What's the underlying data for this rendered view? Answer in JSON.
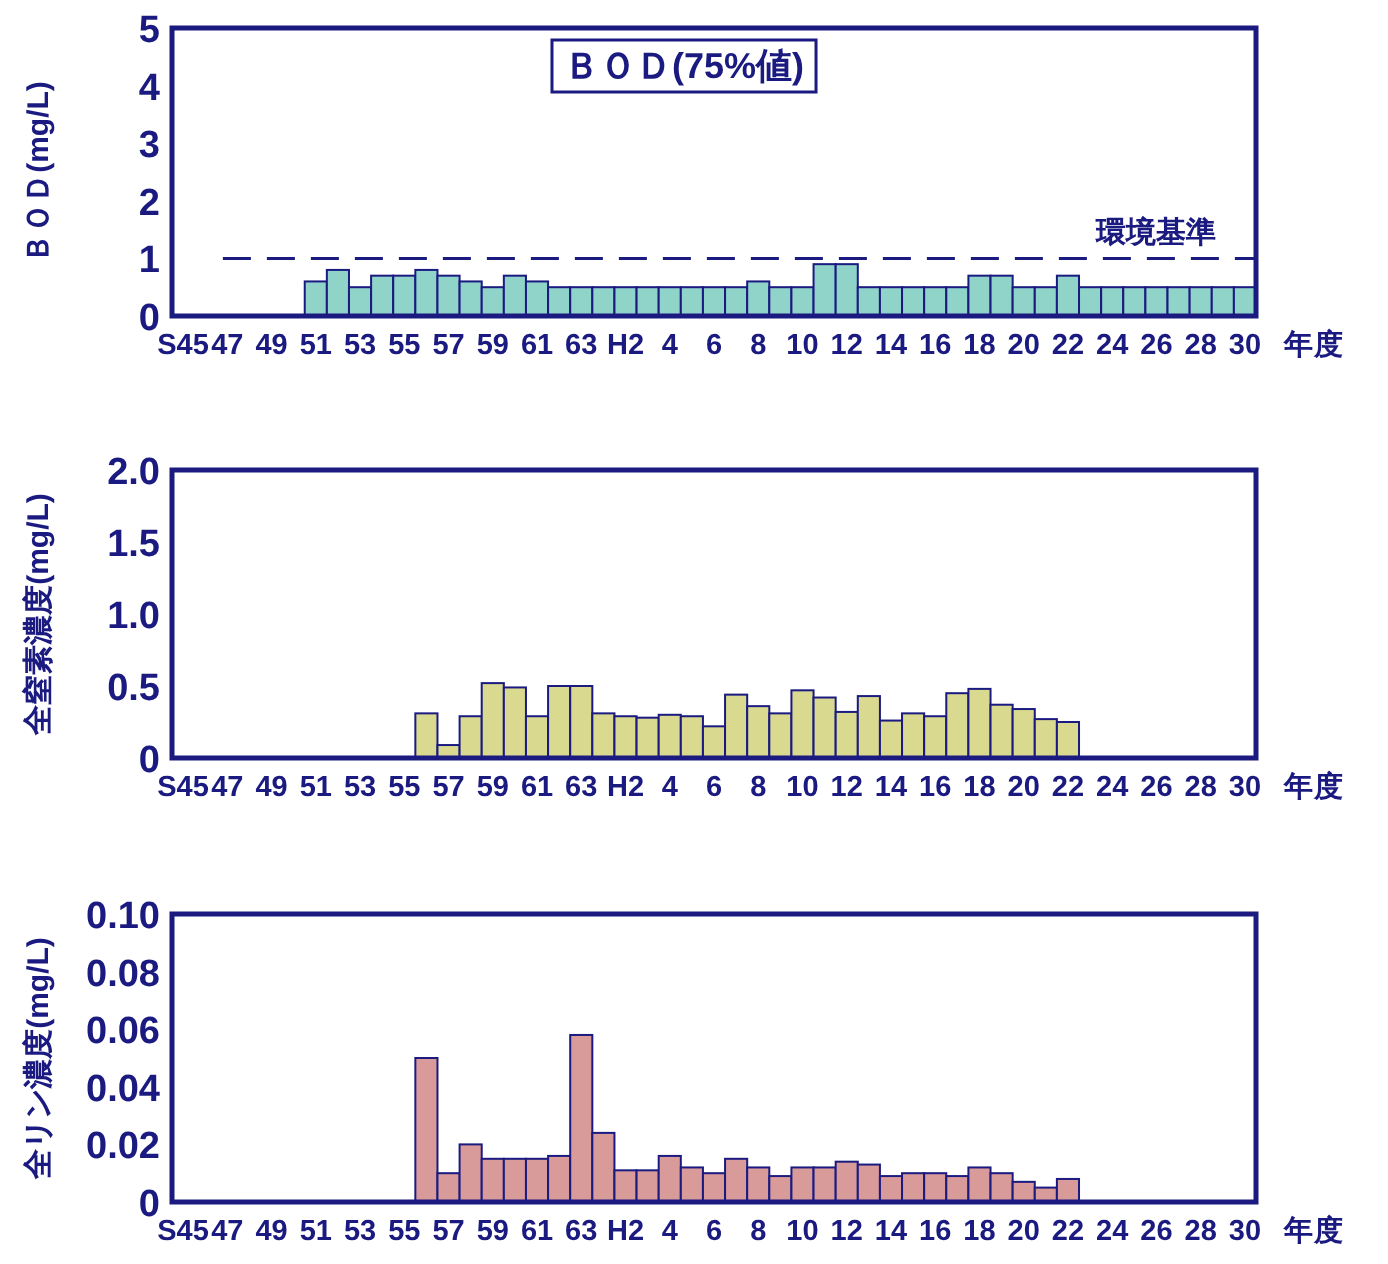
{
  "chart_data": [
    {
      "type": "bar",
      "title": "ＢＯＤ(75%値)",
      "ylabel": "ＢＯＤ(mg/L)",
      "xlabel": "年度",
      "categories": [
        "S45",
        null,
        "47",
        null,
        "49",
        null,
        "51",
        null,
        "53",
        null,
        "55",
        null,
        "57",
        null,
        "59",
        null,
        "61",
        null,
        "63",
        null,
        "H2",
        null,
        "4",
        null,
        "6",
        null,
        "8",
        null,
        "10",
        null,
        "12",
        null,
        "14",
        null,
        "16",
        null,
        "18",
        null,
        "20",
        null,
        "22",
        null,
        "24",
        null,
        "26",
        null,
        "28",
        null,
        "30"
      ],
      "values": [
        null,
        null,
        null,
        null,
        null,
        null,
        0.6,
        0.8,
        0.5,
        0.7,
        0.7,
        0.8,
        0.7,
        0.6,
        0.5,
        0.7,
        0.6,
        0.5,
        0.5,
        0.5,
        0.5,
        0.5,
        0.5,
        0.5,
        0.5,
        0.5,
        0.6,
        0.5,
        0.5,
        0.9,
        0.9,
        0.5,
        0.5,
        0.5,
        0.5,
        0.5,
        0.7,
        0.7,
        0.5,
        0.5,
        0.7,
        0.5,
        0.5,
        0.5,
        0.5,
        0.5,
        0.5,
        0.5,
        0.5
      ],
      "color": "#8fd3c9",
      "ylim": [
        0,
        5
      ],
      "yticks": [
        0,
        1,
        2,
        3,
        4,
        5
      ],
      "ref_lines": [
        {
          "axis": "y",
          "value": 1,
          "label": "環境基準",
          "line_style": "dashed"
        }
      ]
    },
    {
      "type": "bar",
      "ylabel": "全窒素濃度(mg/L)",
      "xlabel": "年度",
      "categories": [
        "S45",
        null,
        "47",
        null,
        "49",
        null,
        "51",
        null,
        "53",
        null,
        "55",
        null,
        "57",
        null,
        "59",
        null,
        "61",
        null,
        "63",
        null,
        "H2",
        null,
        "4",
        null,
        "6",
        null,
        "8",
        null,
        "10",
        null,
        "12",
        null,
        "14",
        null,
        "16",
        null,
        "18",
        null,
        "20",
        null,
        "22",
        null,
        "24",
        null,
        "26",
        null,
        "28",
        null,
        "30"
      ],
      "values": [
        null,
        null,
        null,
        null,
        null,
        null,
        null,
        null,
        null,
        null,
        null,
        0.31,
        0.09,
        0.29,
        0.52,
        0.49,
        0.29,
        0.5,
        0.5,
        0.31,
        0.29,
        0.28,
        0.3,
        0.29,
        0.22,
        0.44,
        0.36,
        0.31,
        0.47,
        0.42,
        0.32,
        0.43,
        0.26,
        0.31,
        0.29,
        0.45,
        0.48,
        0.37,
        0.34,
        0.27,
        0.25,
        null,
        null,
        null,
        null,
        null,
        null,
        null,
        null
      ],
      "color": "#d9d98f",
      "ylim": [
        0,
        2.0
      ],
      "yticks": [
        0,
        {
          "value": 0.5,
          "label": "0.5"
        },
        {
          "value": 1.0,
          "label": "1.0"
        },
        {
          "value": 1.5,
          "label": "1.5"
        },
        {
          "value": 2.0,
          "label": "2.0"
        }
      ]
    },
    {
      "type": "bar",
      "ylabel": "全リン濃度(mg/L)",
      "xlabel": "年度",
      "categories": [
        "S45",
        null,
        "47",
        null,
        "49",
        null,
        "51",
        null,
        "53",
        null,
        "55",
        null,
        "57",
        null,
        "59",
        null,
        "61",
        null,
        "63",
        null,
        "H2",
        null,
        "4",
        null,
        "6",
        null,
        "8",
        null,
        "10",
        null,
        "12",
        null,
        "14",
        null,
        "16",
        null,
        "18",
        null,
        "20",
        null,
        "22",
        null,
        "24",
        null,
        "26",
        null,
        "28",
        null,
        "30"
      ],
      "values": [
        null,
        null,
        null,
        null,
        null,
        null,
        null,
        null,
        null,
        null,
        null,
        0.05,
        0.01,
        0.02,
        0.015,
        0.015,
        0.015,
        0.016,
        0.058,
        0.024,
        0.011,
        0.011,
        0.016,
        0.012,
        0.01,
        0.015,
        0.012,
        0.009,
        0.012,
        0.012,
        0.014,
        0.013,
        0.009,
        0.01,
        0.01,
        0.009,
        0.012,
        0.01,
        0.007,
        0.005,
        0.008,
        null,
        null,
        null,
        null,
        null,
        null,
        null,
        null
      ],
      "color": "#d99a9a",
      "ylim": [
        0,
        0.1
      ],
      "yticks": [
        0,
        {
          "value": 0.02,
          "label": "0.02"
        },
        {
          "value": 0.04,
          "label": "0.04"
        },
        {
          "value": 0.06,
          "label": "0.06"
        },
        {
          "value": 0.08,
          "label": "0.08"
        },
        {
          "value": 0.1,
          "label": "0.10"
        }
      ]
    }
  ]
}
